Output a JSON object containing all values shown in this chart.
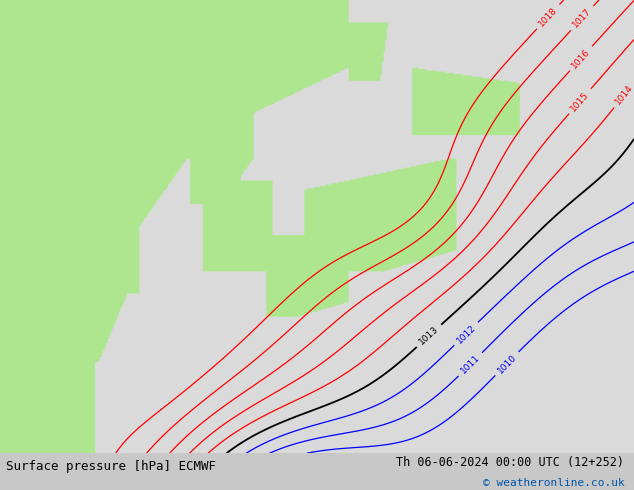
{
  "title_left": "Surface pressure [hPa] ECMWF",
  "title_right": "Th 06-06-2024 00:00 UTC (12+252)",
  "copyright": "© weatheronline.co.uk",
  "bg_color": "#c8c8c8",
  "land_color": "#b0e890",
  "sea_color": "#e0e0e0",
  "footer_fontsize": 9,
  "label_fontsize": 6.5
}
